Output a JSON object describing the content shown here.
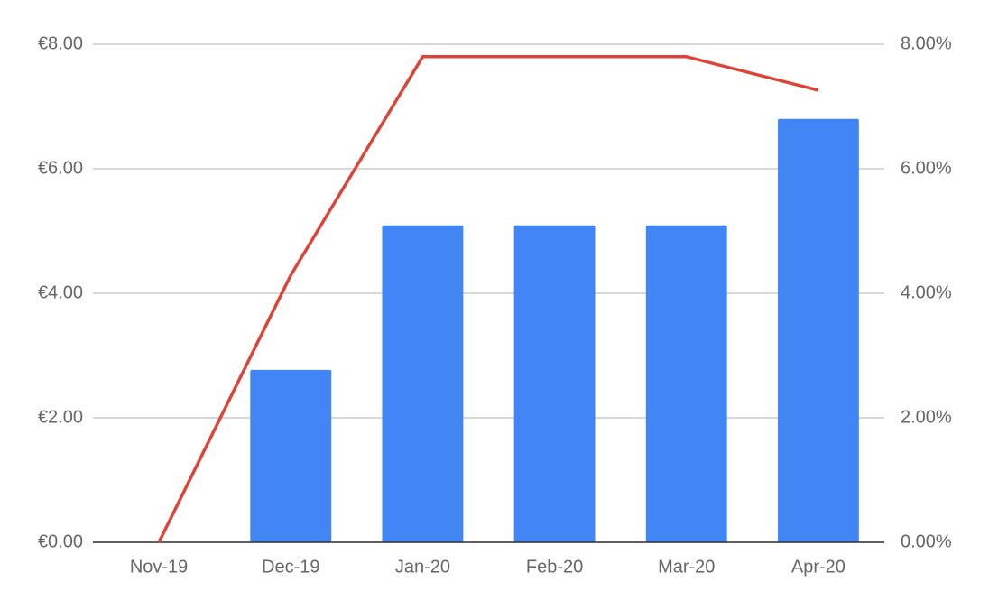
{
  "chart_data": {
    "type": "bar",
    "categories": [
      "Nov-19",
      "Dec-19",
      "Jan-20",
      "Feb-20",
      "Mar-20",
      "Apr-20"
    ],
    "series": [
      {
        "type": "bar",
        "color": "#4285f4",
        "values": [
          0,
          2.77,
          5.09,
          5.09,
          5.09,
          6.8
        ]
      },
      {
        "type": "line",
        "axis": "y2",
        "color": "#db4437",
        "values": [
          0,
          4.29,
          7.8,
          7.8,
          7.8,
          7.26
        ]
      }
    ],
    "ylim": [
      0,
      8
    ],
    "yticks": [
      {
        "value": 0,
        "label": "€0.00"
      },
      {
        "value": 2,
        "label": "€2.00"
      },
      {
        "value": 4,
        "label": "€4.00"
      },
      {
        "value": 6,
        "label": "€6.00"
      },
      {
        "value": 8,
        "label": "€8.00"
      }
    ],
    "y2lim": [
      0,
      8
    ],
    "y2ticks": [
      {
        "value": 0,
        "label": "0.00%"
      },
      {
        "value": 2,
        "label": "2.00%"
      },
      {
        "value": 4,
        "label": "4.00%"
      },
      {
        "value": 6,
        "label": "6.00%"
      },
      {
        "value": 8,
        "label": "8.00%"
      }
    ],
    "grid": true
  }
}
